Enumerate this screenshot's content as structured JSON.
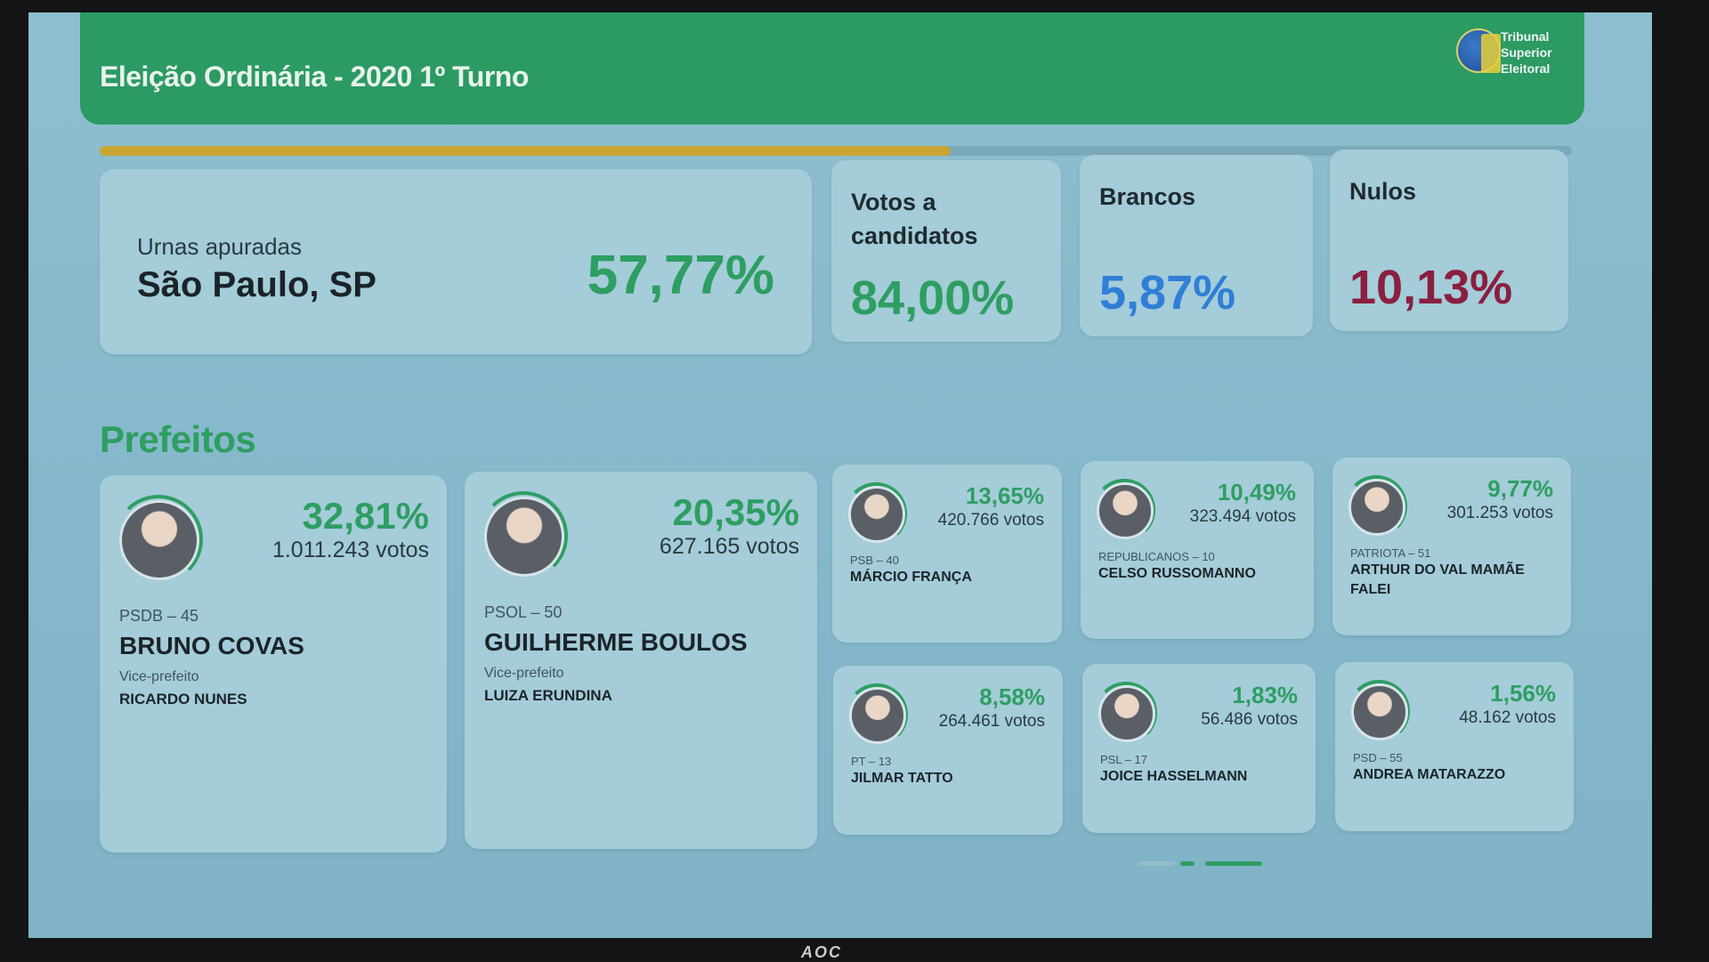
{
  "header": {
    "title": "Eleição Ordinária - 2020 1º Turno",
    "org_name": "Tribunal Superior Eleitoral",
    "org_lines": [
      "Tribunal",
      "Superior",
      "Eleitoral"
    ]
  },
  "progress": {
    "apuradas_fraction": 0.5777
  },
  "summary": {
    "urnas_label": "Urnas apuradas",
    "location": "São Paulo, SP",
    "urnas_pct": "57,77%",
    "stats": [
      {
        "title": "Votos a candidatos",
        "value": "84,00%",
        "color": "#2e9e62"
      },
      {
        "title": "Brancos",
        "value": "5,87%",
        "color": "#2f7fd6"
      },
      {
        "title": "Nulos",
        "value": "10,13%",
        "color": "#8a1f3f"
      }
    ]
  },
  "section": {
    "title": "Prefeitos"
  },
  "candidates": [
    {
      "pct": "32,81%",
      "votes": "1.011.243 votos",
      "party": "PSDB – 45",
      "name": "BRUNO COVAS",
      "vice_label": "Vice-prefeito",
      "vice_name": "RICARDO NUNES"
    },
    {
      "pct": "20,35%",
      "votes": "627.165 votos",
      "party": "PSOL – 50",
      "name": "GUILHERME BOULOS",
      "vice_label": "Vice-prefeito",
      "vice_name": "LUIZA ERUNDINA"
    },
    {
      "pct": "13,65%",
      "votes": "420.766 votos",
      "party": "PSB – 40",
      "name": "MÁRCIO FRANÇA"
    },
    {
      "pct": "10,49%",
      "votes": "323.494 votos",
      "party": "REPUBLICANOS – 10",
      "name": "CELSO RUSSOMANNO"
    },
    {
      "pct": "9,77%",
      "votes": "301.253 votos",
      "party": "PATRIOTA – 51",
      "name": "ARTHUR DO VAL MAMÃE FALEI"
    },
    {
      "pct": "8,58%",
      "votes": "264.461 votos",
      "party": "PT – 13",
      "name": "JILMAR TATTO"
    },
    {
      "pct": "1,83%",
      "votes": "56.486 votos",
      "party": "PSL – 17",
      "name": "JOICE HASSELMANN"
    },
    {
      "pct": "1,56%",
      "votes": "48.162 votos",
      "party": "PSD – 55",
      "name": "ANDREA MATARAZZO"
    }
  ],
  "monitor": {
    "brand": "AOC"
  },
  "colors": {
    "accent": "#2e9e62",
    "header": "#2c9a63",
    "progress": "#c9a632"
  }
}
